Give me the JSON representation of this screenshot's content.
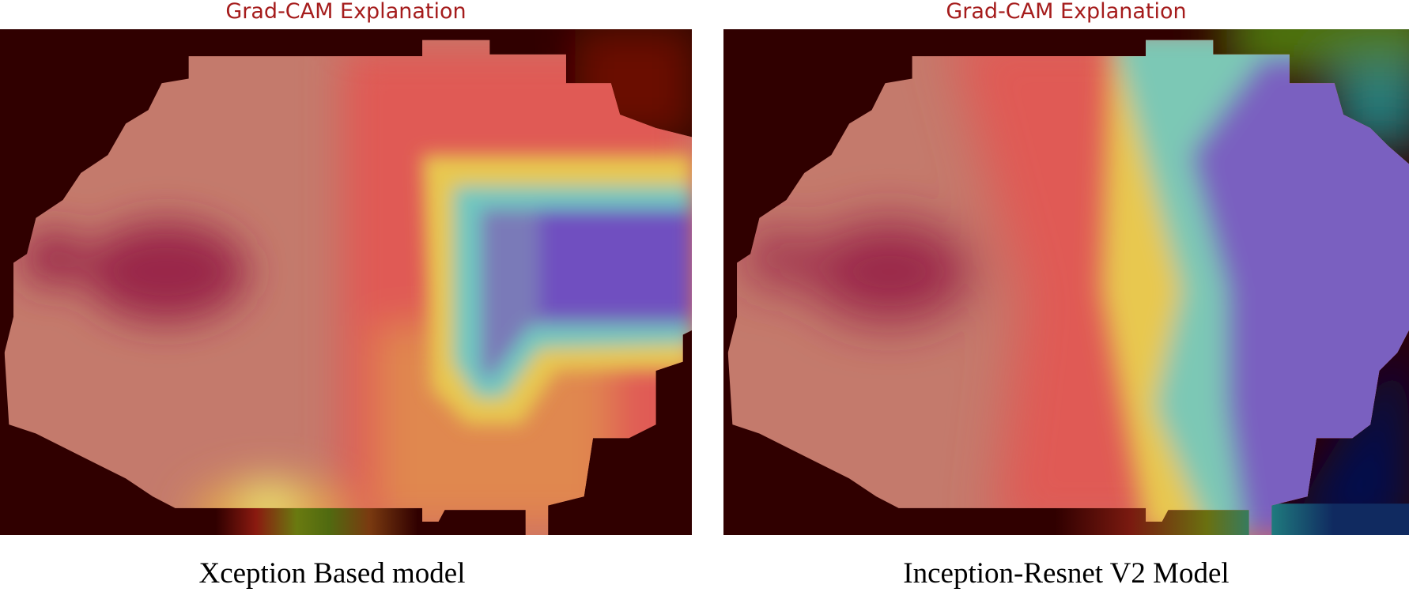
{
  "panels": [
    {
      "title": "Grad-CAM Explanation",
      "caption": "Xception Based model"
    },
    {
      "title": "Grad-CAM Explanation",
      "caption": "Inception-Resnet V2 Model"
    }
  ]
}
